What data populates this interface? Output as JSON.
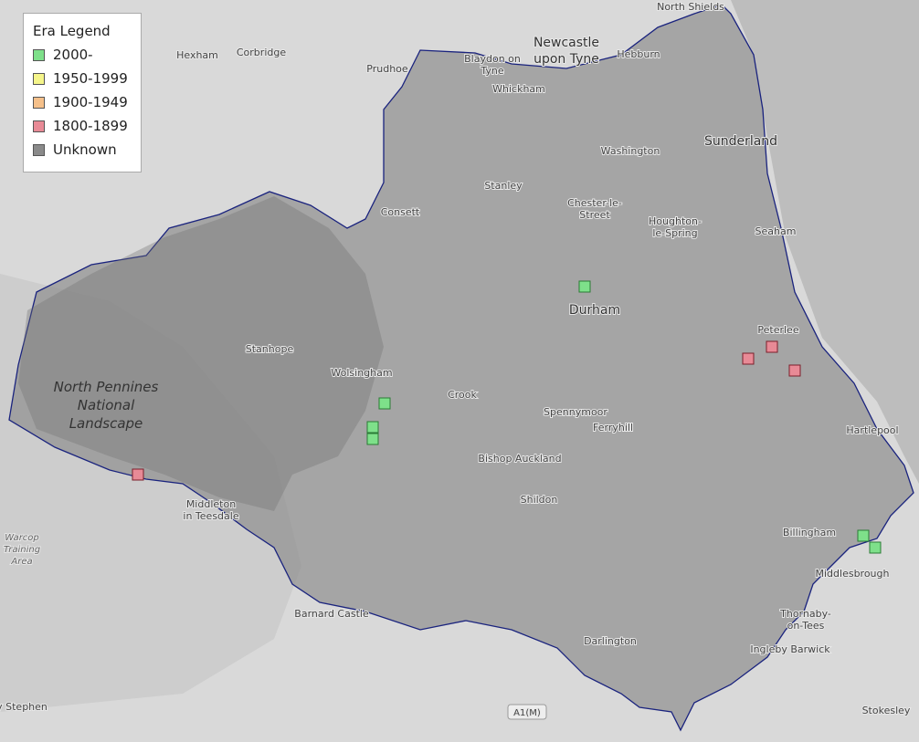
{
  "legend": {
    "title": "Era Legend",
    "items": [
      "2000-",
      "1950-1999",
      "1900-1949",
      "1800-1899",
      "Unknown"
    ]
  },
  "places": [
    [
      "North Shields"
    ],
    [
      "Newcastle",
      "upon Tyne"
    ],
    [
      "Hexham"
    ],
    [
      "Corbridge"
    ],
    [
      "Prudhoe"
    ],
    [
      "Blaydon on",
      "Tyne"
    ],
    [
      "Hebburn"
    ],
    [
      "Whickham"
    ],
    [
      "Sunderland"
    ],
    [
      "Washington"
    ],
    [
      "Stanley"
    ],
    [
      "Consett"
    ],
    [
      "Chester-le-",
      "Street"
    ],
    [
      "Houghton-",
      "le-Spring"
    ],
    [
      "Seaham"
    ],
    [
      "Durham"
    ],
    [
      "Peterlee"
    ],
    [
      "Stanhope"
    ],
    [
      "Wolsingham"
    ],
    [
      "Crook"
    ],
    [
      "Spennymoor"
    ],
    [
      "Ferryhill"
    ],
    [
      "Hartlepool"
    ],
    [
      "North Pennines",
      "National",
      "Landscape"
    ],
    [
      "Bishop Auckland"
    ],
    [
      "Shildon"
    ],
    [
      "Middleton",
      "in Teesdale"
    ],
    [
      "Billingham"
    ],
    [
      "Middlesbrough"
    ],
    [
      "Warcop",
      "Training",
      "Area"
    ],
    [
      "Thornaby-",
      "on-Tees"
    ],
    [
      "Barnard Castle"
    ],
    [
      "Darlington"
    ],
    [
      "Ingleby Barwick"
    ],
    [
      "Stokesley"
    ],
    [
      "y Stephen"
    ]
  ],
  "road_label": "A1(M)"
}
